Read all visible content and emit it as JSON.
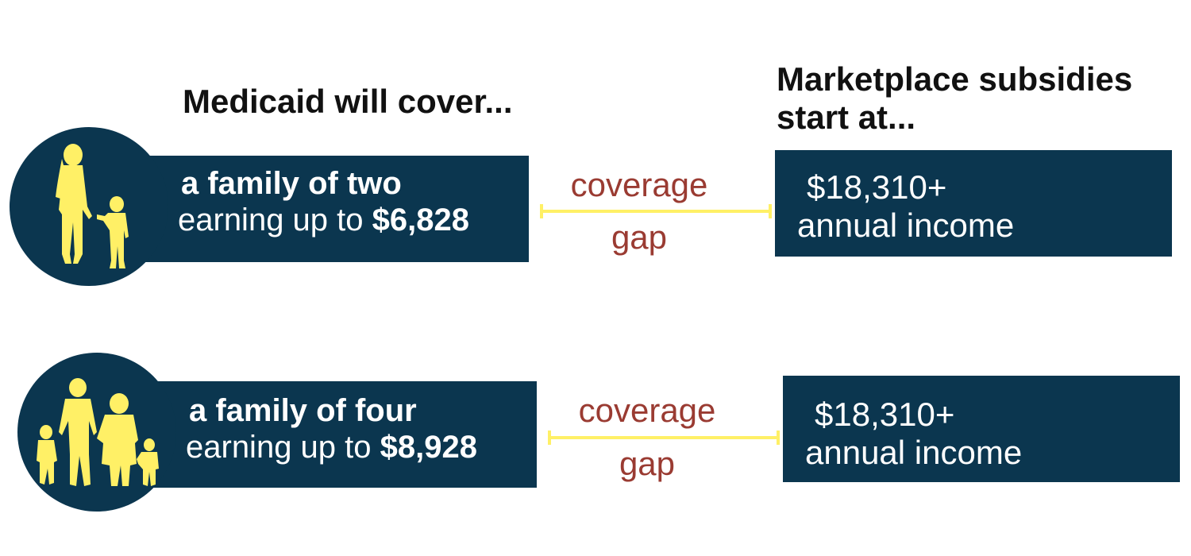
{
  "headings": {
    "medicaid": "Medicaid will cover...",
    "marketplace": "Marketplace subsidies start at..."
  },
  "rows": [
    {
      "icon": "parent-and-child-silhouette-icon",
      "family_label": "a family of two",
      "earning_prefix": "earning up to",
      "earning_limit": "$6,828",
      "gap_word_1": "coverage",
      "gap_word_2": "gap",
      "subsidy_amount": "$18,310+",
      "subsidy_desc": "annual income"
    },
    {
      "icon": "family-of-four-silhouette-icon",
      "family_label": "a family of four",
      "earning_prefix": "earning up to",
      "earning_limit": "$8,928",
      "gap_word_1": "coverage",
      "gap_word_2": "gap",
      "subsidy_amount": "$18,310+",
      "subsidy_desc": "annual income"
    }
  ],
  "colors": {
    "navy": "#0b364f",
    "silhouette_yellow": "#fff066",
    "gap_text": "#9a3b32",
    "gap_line": "#fff066"
  }
}
